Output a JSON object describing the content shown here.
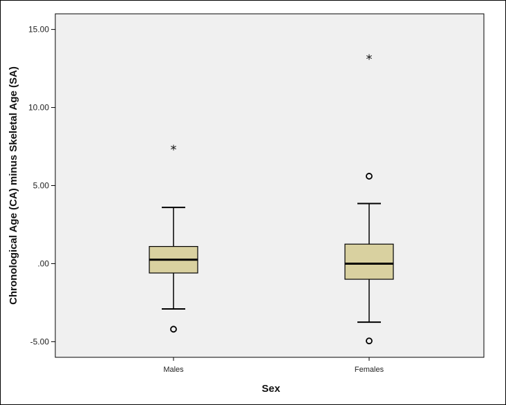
{
  "chart_data": {
    "type": "boxplot",
    "xlabel": "Sex",
    "ylabel": "Chronological Age (CA) minus Skeletal Age (SA)",
    "ylim": [
      -6.0,
      16.0
    ],
    "yticks": [
      {
        "value": 15,
        "label": "15.00"
      },
      {
        "value": 10,
        "label": "10.00"
      },
      {
        "value": 5,
        "label": "5.00"
      },
      {
        "value": 0,
        "label": ".00"
      },
      {
        "value": -5,
        "label": "-5.00"
      }
    ],
    "grid": false,
    "box_color": "#d9d1a0",
    "plot_bg": "#f0f0f0",
    "categories": [
      "Males",
      "Females"
    ],
    "boxes": [
      {
        "category": "Males",
        "whisker_low": -2.9,
        "q1": -0.6,
        "median": 0.25,
        "q3": 1.1,
        "whisker_high": 3.6,
        "outliers": [
          -4.2
        ],
        "extremes": [
          7.4
        ]
      },
      {
        "category": "Females",
        "whisker_low": -3.75,
        "q1": -1.0,
        "median": 0.0,
        "q3": 1.25,
        "whisker_high": 3.85,
        "outliers": [
          5.6,
          -4.95
        ],
        "extremes": [
          13.2
        ]
      }
    ]
  }
}
